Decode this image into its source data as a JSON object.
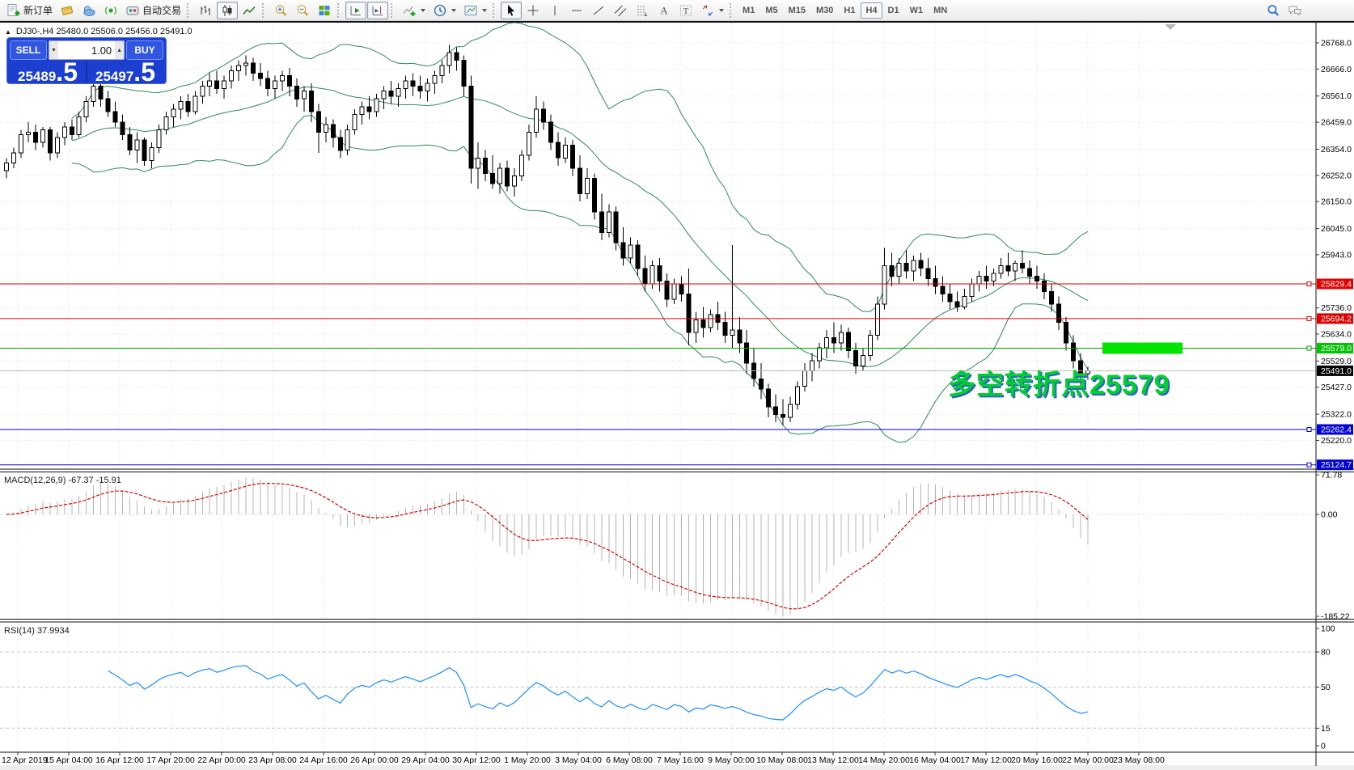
{
  "toolbar": {
    "new_order_label": "新订单",
    "autotrading_label": "自动交易",
    "glyph_a": "A",
    "glyph_t": "T",
    "timeframes": [
      "M1",
      "M5",
      "M15",
      "M30",
      "H1",
      "H4",
      "D1",
      "W1",
      "MN"
    ],
    "active_timeframe": "H4"
  },
  "chart": {
    "ohlc_line": "DJ30-,H4  25480.0 25506.0 25456.0 25491.0",
    "collapse_arrow": "▲",
    "annotation_text": "多空转折点25579"
  },
  "trade_panel": {
    "sell_label": "SELL",
    "buy_label": "BUY",
    "volume": "1.00",
    "sell_price": "25489",
    "sell_price_big": ".5",
    "buy_price": "25497",
    "buy_price_big": ".5"
  },
  "panes": {
    "macd_label": "MACD(12,26,9) -67.37 -15.91",
    "rsi_label": "RSI(14) 37.9934"
  },
  "chart_data": {
    "type": "candlestick",
    "symbol": "DJ30-",
    "timeframe": "H4",
    "price_ticks": [
      "26768.0",
      "26666.0",
      "26561.0",
      "26459.0",
      "26354.0",
      "26252.0",
      "26150.0",
      "26045.0",
      "25943.0",
      "25736.0",
      "25634.0",
      "25529.0",
      "25427.0",
      "25322.0",
      "25220.0"
    ],
    "time_ticks": [
      "12 Apr 2019",
      "15 Apr 04:00",
      "16 Apr 12:00",
      "17 Apr 20:00",
      "22 Apr 00:00",
      "23 Apr 08:00",
      "24 Apr 16:00",
      "26 Apr 00:00",
      "29 Apr 04:00",
      "30 Apr 12:00",
      "1 May 20:00",
      "3 May 04:00",
      "6 May 08:00",
      "7 May 16:00",
      "9 May 00:00",
      "10 May 08:00",
      "13 May 12:00",
      "14 May 20:00",
      "16 May 04:00",
      "17 May 12:00",
      "20 May 16:00",
      "22 May 00:00",
      "23 May 08:00"
    ],
    "macd_ticks": [
      "71.78",
      "0.00",
      "-185.22"
    ],
    "rsi_ticks": [
      "100",
      "80",
      "50",
      "15",
      "0"
    ],
    "rsi_levels": [
      80,
      50,
      15
    ],
    "hlines": [
      {
        "label": "25829.4",
        "price": 25829.4,
        "line": "#e00000",
        "bg": "#e00000"
      },
      {
        "label": "25694.2",
        "price": 25694.2,
        "line": "#e00000",
        "bg": "#e00000"
      },
      {
        "label": "25579.0",
        "price": 25579.0,
        "line": "#00a000",
        "bg": "#00c400"
      },
      {
        "label": "25262.4",
        "price": 25262.4,
        "line": "#0000d8",
        "bg": "#0000d8"
      },
      {
        "label": "25124.7",
        "price": 25124.7,
        "line": "#0000d8",
        "bg": "#0000d8"
      }
    ],
    "bid_line": {
      "label": "25491.0",
      "price": 25491.0,
      "line": "#b8b8b8",
      "bg": "#000000"
    },
    "highlight_box": {
      "price": 25579.0,
      "color": "#00e400"
    },
    "indicators": {
      "bollinger": {
        "period": 20,
        "deviation": 2,
        "color": "#2e8b57"
      },
      "macd": {
        "fast": 12,
        "slow": 26,
        "signal": 9,
        "value": -67.37,
        "signal_value": -15.91,
        "bar_color": "#b4b4b4",
        "signal_color": "#e00000"
      },
      "rsi": {
        "period": 14,
        "value": 37.9934,
        "color": "#1e90ff"
      }
    },
    "candles": [
      [
        26270,
        26320,
        26240,
        26300
      ],
      [
        26300,
        26360,
        26280,
        26340
      ],
      [
        26340,
        26430,
        26320,
        26410
      ],
      [
        26410,
        26460,
        26380,
        26420
      ],
      [
        26420,
        26450,
        26350,
        26380
      ],
      [
        26380,
        26440,
        26360,
        26430
      ],
      [
        26430,
        26440,
        26310,
        26340
      ],
      [
        26340,
        26420,
        26320,
        26400
      ],
      [
        26400,
        26460,
        26370,
        26440
      ],
      [
        26440,
        26470,
        26390,
        26410
      ],
      [
        26410,
        26500,
        26400,
        26480
      ],
      [
        26480,
        26560,
        26460,
        26540
      ],
      [
        26540,
        26630,
        26520,
        26600
      ],
      [
        26600,
        26620,
        26520,
        26550
      ],
      [
        26550,
        26580,
        26480,
        26500
      ],
      [
        26500,
        26540,
        26440,
        26460
      ],
      [
        26460,
        26490,
        26390,
        26410
      ],
      [
        26410,
        26440,
        26330,
        26350
      ],
      [
        26350,
        26420,
        26300,
        26390
      ],
      [
        26390,
        26400,
        26290,
        26310
      ],
      [
        26310,
        26380,
        26280,
        26360
      ],
      [
        26360,
        26450,
        26340,
        26430
      ],
      [
        26430,
        26500,
        26410,
        26480
      ],
      [
        26480,
        26530,
        26440,
        26510
      ],
      [
        26510,
        26560,
        26470,
        26540
      ],
      [
        26540,
        26570,
        26480,
        26500
      ],
      [
        26500,
        26580,
        26490,
        26560
      ],
      [
        26560,
        26620,
        26530,
        26600
      ],
      [
        26600,
        26650,
        26560,
        26620
      ],
      [
        26620,
        26660,
        26570,
        26590
      ],
      [
        26590,
        26640,
        26550,
        26620
      ],
      [
        26620,
        26680,
        26590,
        26660
      ],
      [
        26660,
        26700,
        26620,
        26680
      ],
      [
        26680,
        26720,
        26640,
        26690
      ],
      [
        26690,
        26710,
        26620,
        26650
      ],
      [
        26650,
        26690,
        26600,
        26630
      ],
      [
        26630,
        26660,
        26560,
        26590
      ],
      [
        26590,
        26640,
        26550,
        26620
      ],
      [
        26620,
        26660,
        26580,
        26640
      ],
      [
        26640,
        26670,
        26560,
        26600
      ],
      [
        26600,
        26630,
        26520,
        26550
      ],
      [
        26550,
        26600,
        26500,
        26580
      ],
      [
        26580,
        26610,
        26460,
        26500
      ],
      [
        26500,
        26530,
        26340,
        26420
      ],
      [
        26420,
        26480,
        26380,
        26450
      ],
      [
        26450,
        26470,
        26360,
        26400
      ],
      [
        26400,
        26430,
        26320,
        26350
      ],
      [
        26350,
        26450,
        26330,
        26430
      ],
      [
        26430,
        26510,
        26410,
        26490
      ],
      [
        26490,
        26540,
        26450,
        26520
      ],
      [
        26520,
        26560,
        26470,
        26500
      ],
      [
        26500,
        26570,
        26480,
        26550
      ],
      [
        26550,
        26600,
        26510,
        26580
      ],
      [
        26580,
        26620,
        26530,
        26560
      ],
      [
        26560,
        26610,
        26520,
        26590
      ],
      [
        26590,
        26640,
        26550,
        26620
      ],
      [
        26620,
        26650,
        26560,
        26600
      ],
      [
        26600,
        26640,
        26550,
        26580
      ],
      [
        26580,
        26630,
        26540,
        26610
      ],
      [
        26610,
        26660,
        26570,
        26640
      ],
      [
        26640,
        26700,
        26610,
        26680
      ],
      [
        26680,
        26760,
        26650,
        26730
      ],
      [
        26730,
        26750,
        26660,
        26700
      ],
      [
        26700,
        26720,
        26560,
        26600
      ],
      [
        26600,
        26640,
        26220,
        26280
      ],
      [
        26280,
        26380,
        26200,
        26320
      ],
      [
        26320,
        26350,
        26230,
        26260
      ],
      [
        26260,
        26330,
        26200,
        26220
      ],
      [
        26220,
        26300,
        26180,
        26280
      ],
      [
        26280,
        26310,
        26190,
        26210
      ],
      [
        26210,
        26280,
        26170,
        26250
      ],
      [
        26250,
        26350,
        26230,
        26330
      ],
      [
        26330,
        26450,
        26310,
        26420
      ],
      [
        26420,
        26560,
        26400,
        26510
      ],
      [
        26510,
        26540,
        26430,
        26460
      ],
      [
        26460,
        26490,
        26350,
        26380
      ],
      [
        26380,
        26420,
        26290,
        26320
      ],
      [
        26320,
        26400,
        26300,
        26370
      ],
      [
        26370,
        26390,
        26250,
        26280
      ],
      [
        26280,
        26330,
        26150,
        26180
      ],
      [
        26180,
        26280,
        26160,
        26240
      ],
      [
        26240,
        26260,
        26080,
        26110
      ],
      [
        26110,
        26180,
        26000,
        26030
      ],
      [
        26030,
        26140,
        26010,
        26110
      ],
      [
        26110,
        26130,
        25960,
        25990
      ],
      [
        25990,
        26050,
        25900,
        25930
      ],
      [
        25930,
        26010,
        25910,
        25980
      ],
      [
        25980,
        26000,
        25860,
        25890
      ],
      [
        25890,
        25940,
        25800,
        25830
      ],
      [
        25830,
        25920,
        25810,
        25900
      ],
      [
        25900,
        25930,
        25800,
        25840
      ],
      [
        25840,
        25870,
        25740,
        25770
      ],
      [
        25770,
        25850,
        25750,
        25830
      ],
      [
        25830,
        25860,
        25760,
        25790
      ],
      [
        25790,
        25890,
        25590,
        25640
      ],
      [
        25640,
        25720,
        25600,
        25690
      ],
      [
        25690,
        25740,
        25620,
        25660
      ],
      [
        25660,
        25730,
        25640,
        25710
      ],
      [
        25710,
        25760,
        25650,
        25680
      ],
      [
        25680,
        25720,
        25600,
        25630
      ],
      [
        25630,
        25980,
        25580,
        25650
      ],
      [
        25650,
        25700,
        25560,
        25600
      ],
      [
        25600,
        25650,
        25480,
        25520
      ],
      [
        25520,
        25580,
        25430,
        25460
      ],
      [
        25460,
        25520,
        25380,
        25420
      ],
      [
        25420,
        25440,
        25310,
        25350
      ],
      [
        25350,
        25400,
        25290,
        25320
      ],
      [
        25320,
        25380,
        25280,
        25310
      ],
      [
        25310,
        25390,
        25290,
        25360
      ],
      [
        25360,
        25450,
        25340,
        25430
      ],
      [
        25430,
        25520,
        25410,
        25490
      ],
      [
        25490,
        25560,
        25450,
        25530
      ],
      [
        25530,
        25600,
        25500,
        25580
      ],
      [
        25580,
        25650,
        25540,
        25620
      ],
      [
        25620,
        25680,
        25560,
        25600
      ],
      [
        25600,
        25670,
        25570,
        25640
      ],
      [
        25640,
        25660,
        25540,
        25570
      ],
      [
        25570,
        25600,
        25480,
        25510
      ],
      [
        25510,
        25580,
        25490,
        25550
      ],
      [
        25550,
        25650,
        25530,
        25630
      ],
      [
        25630,
        25780,
        25610,
        25750
      ],
      [
        25750,
        25970,
        25730,
        25900
      ],
      [
        25900,
        25950,
        25820,
        25860
      ],
      [
        25860,
        25930,
        25830,
        25910
      ],
      [
        25910,
        25960,
        25850,
        25880
      ],
      [
        25880,
        25940,
        25840,
        25920
      ],
      [
        25920,
        25950,
        25860,
        25890
      ],
      [
        25890,
        25930,
        25820,
        25850
      ],
      [
        25850,
        25900,
        25790,
        25820
      ],
      [
        25820,
        25860,
        25760,
        25790
      ],
      [
        25790,
        25830,
        25730,
        25760
      ],
      [
        25760,
        25800,
        25720,
        25740
      ],
      [
        25740,
        25810,
        25730,
        25780
      ],
      [
        25780,
        25850,
        25760,
        25830
      ],
      [
        25830,
        25880,
        25800,
        25860
      ],
      [
        25860,
        25900,
        25810,
        25840
      ],
      [
        25840,
        25890,
        25820,
        25870
      ],
      [
        25870,
        25930,
        25850,
        25900
      ],
      [
        25900,
        25950,
        25860,
        25880
      ],
      [
        25880,
        25920,
        25840,
        25910
      ],
      [
        25910,
        25960,
        25870,
        25890
      ],
      [
        25890,
        25920,
        25830,
        25860
      ],
      [
        25860,
        25900,
        25810,
        25840
      ],
      [
        25840,
        25870,
        25770,
        25800
      ],
      [
        25800,
        25830,
        25720,
        25750
      ],
      [
        25750,
        25780,
        25650,
        25680
      ],
      [
        25680,
        25700,
        25570,
        25600
      ],
      [
        25600,
        25630,
        25500,
        25530
      ],
      [
        25530,
        25560,
        25430,
        25480
      ],
      [
        25480,
        25506,
        25456,
        25491
      ]
    ]
  }
}
